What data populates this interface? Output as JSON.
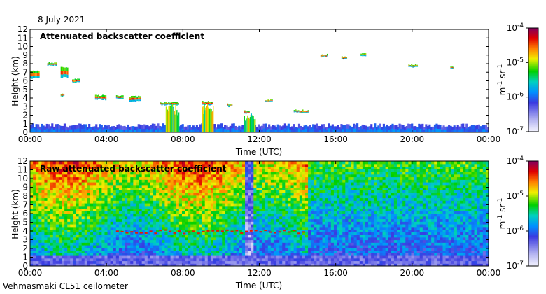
{
  "date": "8 July 2021",
  "instrument": "Vehmasmaki CL51 ceilometer",
  "colors": {
    "background": "#ffffff",
    "low": "#3030d0",
    "mid": "#00c000",
    "high": "#d00000"
  },
  "colorbar": {
    "unit_base": "m",
    "unit_exp1": "-1",
    "unit_mid": "sr",
    "unit_exp2": "-1",
    "labels": [
      {
        "base": "10",
        "exp": "-4"
      },
      {
        "base": "10",
        "exp": "-5"
      },
      {
        "base": "10",
        "exp": "-6"
      },
      {
        "base": "10",
        "exp": "-7"
      }
    ]
  },
  "chart_data": [
    {
      "type": "heatmap",
      "title": "Attenuated backscatter coefficient",
      "xlabel": "Time (UTC)",
      "ylabel": "Height (km)",
      "xticks": [
        "00:00",
        "04:00",
        "08:00",
        "12:00",
        "16:00",
        "20:00",
        "00:00"
      ],
      "yticks": [
        "0",
        "1",
        "2",
        "3",
        "4",
        "5",
        "6",
        "7",
        "8",
        "9",
        "10",
        "11",
        "12"
      ],
      "xlim_hours": [
        0,
        24
      ],
      "ylim_km": [
        0,
        12
      ],
      "color_scale_log10": [
        -7,
        -4
      ],
      "boundary_layer_top_km": 1.0,
      "cloud_layers": [
        {
          "start_h": 0.0,
          "end_h": 0.5,
          "base_km": 6.3,
          "top_km": 7.2
        },
        {
          "start_h": 0.9,
          "end_h": 1.4,
          "base_km": 7.8,
          "top_km": 8.1
        },
        {
          "start_h": 1.6,
          "end_h": 2.0,
          "base_km": 6.4,
          "top_km": 7.6
        },
        {
          "start_h": 2.2,
          "end_h": 2.6,
          "base_km": 5.8,
          "top_km": 6.2
        },
        {
          "start_h": 1.6,
          "end_h": 1.8,
          "base_km": 4.2,
          "top_km": 4.5
        },
        {
          "start_h": 3.4,
          "end_h": 4.0,
          "base_km": 3.8,
          "top_km": 4.3
        },
        {
          "start_h": 4.5,
          "end_h": 4.9,
          "base_km": 3.9,
          "top_km": 4.3
        },
        {
          "start_h": 5.2,
          "end_h": 5.8,
          "base_km": 3.6,
          "top_km": 4.2
        },
        {
          "start_h": 6.8,
          "end_h": 7.8,
          "base_km": 3.2,
          "top_km": 3.5
        },
        {
          "start_h": 9.0,
          "end_h": 9.6,
          "base_km": 3.2,
          "top_km": 3.6
        },
        {
          "start_h": 10.3,
          "end_h": 10.6,
          "base_km": 3.0,
          "top_km": 3.3
        },
        {
          "start_h": 11.2,
          "end_h": 11.5,
          "base_km": 2.2,
          "top_km": 2.5
        },
        {
          "start_h": 12.3,
          "end_h": 12.7,
          "base_km": 3.6,
          "top_km": 3.8
        },
        {
          "start_h": 13.8,
          "end_h": 14.6,
          "base_km": 2.3,
          "top_km": 2.6
        },
        {
          "start_h": 15.2,
          "end_h": 15.6,
          "base_km": 8.8,
          "top_km": 9.1
        },
        {
          "start_h": 16.3,
          "end_h": 16.6,
          "base_km": 8.5,
          "top_km": 8.8
        },
        {
          "start_h": 17.3,
          "end_h": 17.6,
          "base_km": 8.9,
          "top_km": 9.2
        },
        {
          "start_h": 19.8,
          "end_h": 20.3,
          "base_km": 7.6,
          "top_km": 7.9
        },
        {
          "start_h": 22.0,
          "end_h": 22.2,
          "base_km": 7.4,
          "top_km": 7.6
        }
      ],
      "rain_shafts": [
        {
          "start_h": 7.1,
          "end_h": 7.8,
          "top_km": 3.3
        },
        {
          "start_h": 9.0,
          "end_h": 9.6,
          "top_km": 3.3
        },
        {
          "start_h": 11.2,
          "end_h": 11.8,
          "top_km": 2.2
        }
      ]
    },
    {
      "type": "heatmap",
      "title": "Raw attenuated backscatter coefficient",
      "xlabel": "Time (UTC)",
      "ylabel": "Height (km)",
      "xticks": [
        "00:00",
        "04:00",
        "08:00",
        "12:00",
        "16:00",
        "20:00",
        "00:00"
      ],
      "yticks": [
        "0",
        "1",
        "2",
        "3",
        "4",
        "5",
        "6",
        "7",
        "8",
        "9",
        "10",
        "11",
        "12"
      ],
      "xlim_hours": [
        0,
        24
      ],
      "ylim_km": [
        0,
        12
      ],
      "color_scale_log10": [
        -7,
        -4
      ],
      "boundary_layer_top_km": 1.0,
      "noise_transition_hour": 14.5,
      "cloud_line_km": 4.0
    }
  ]
}
